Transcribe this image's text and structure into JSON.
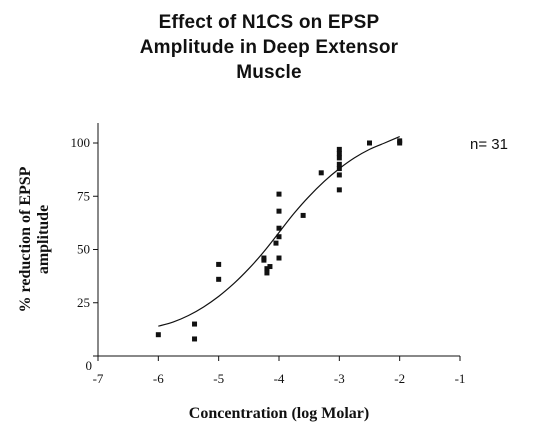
{
  "chart_data": {
    "type": "scatter",
    "title_lines": [
      "Effect of N1CS on EPSP",
      "Amplitude in Deep Extensor",
      "Muscle"
    ],
    "xlabel": "Concentration (log Molar)",
    "ylabel_lines": [
      "% reduction of EPSP",
      "amplitude"
    ],
    "annotation": "n= 31",
    "xlim": [
      -7,
      -1
    ],
    "ylim": [
      0,
      110
    ],
    "x_ticks": [
      "-7",
      "-6",
      "-5",
      "-4",
      "-3",
      "-2",
      "-1"
    ],
    "y_ticks": [
      "0",
      "25",
      "50",
      "75",
      "100"
    ],
    "grid": false,
    "marker_color": "#111111",
    "fit_curve": {
      "x": [
        -6,
        -5.75,
        -5.5,
        -5.25,
        -5,
        -4.75,
        -4.5,
        -4.25,
        -4,
        -3.75,
        -3.5,
        -3.25,
        -3,
        -2.75,
        -2.5,
        -2.25,
        -2
      ],
      "y": [
        14,
        16,
        19,
        23,
        28,
        34,
        41,
        49,
        58,
        67,
        75,
        82,
        88,
        93,
        97,
        100,
        103
      ]
    },
    "points": [
      {
        "x": -6.0,
        "y": 10
      },
      {
        "x": -5.4,
        "y": 8
      },
      {
        "x": -5.4,
        "y": 15
      },
      {
        "x": -5.0,
        "y": 36
      },
      {
        "x": -5.0,
        "y": 43
      },
      {
        "x": -4.25,
        "y": 45
      },
      {
        "x": -4.25,
        "y": 46
      },
      {
        "x": -4.2,
        "y": 41
      },
      {
        "x": -4.2,
        "y": 39
      },
      {
        "x": -4.15,
        "y": 42
      },
      {
        "x": -4.0,
        "y": 46
      },
      {
        "x": -4.05,
        "y": 53
      },
      {
        "x": -4.0,
        "y": 56
      },
      {
        "x": -4.0,
        "y": 60
      },
      {
        "x": -4.0,
        "y": 68
      },
      {
        "x": -4.0,
        "y": 76
      },
      {
        "x": -3.6,
        "y": 66
      },
      {
        "x": -3.3,
        "y": 86
      },
      {
        "x": -3.0,
        "y": 78
      },
      {
        "x": -3.0,
        "y": 85
      },
      {
        "x": -3.0,
        "y": 88
      },
      {
        "x": -3.0,
        "y": 90
      },
      {
        "x": -3.0,
        "y": 93
      },
      {
        "x": -3.0,
        "y": 95
      },
      {
        "x": -3.0,
        "y": 97
      },
      {
        "x": -2.5,
        "y": 100
      },
      {
        "x": -2.0,
        "y": 100
      },
      {
        "x": -2.0,
        "y": 101
      }
    ]
  }
}
